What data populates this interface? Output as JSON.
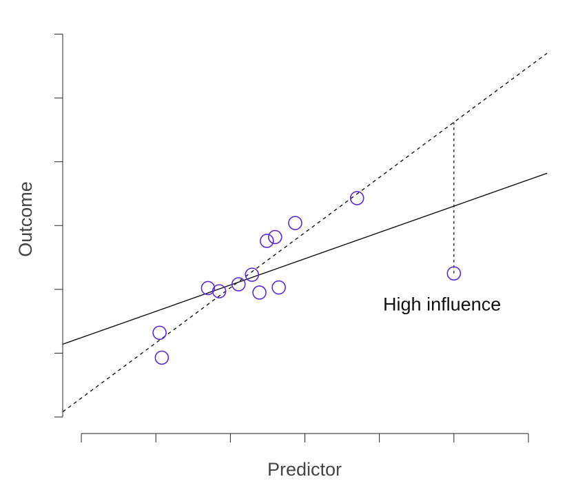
{
  "chart_data": {
    "type": "scatter",
    "xlabel": "Predictor",
    "ylabel": "Outcome",
    "xlim": [
      0,
      6.5
    ],
    "ylim": [
      0,
      6.2
    ],
    "x_ticks": [
      0.25,
      1.25,
      2.25,
      3.25,
      4.25,
      5.25,
      6.25
    ],
    "y_ticks": [
      0,
      1,
      2,
      3,
      4,
      5,
      6
    ],
    "tick_labels_shown": false,
    "grid": false,
    "point_color": "#5b28d6",
    "points": [
      {
        "x": 1.3,
        "y": 1.32
      },
      {
        "x": 1.33,
        "y": 0.93
      },
      {
        "x": 1.95,
        "y": 2.02
      },
      {
        "x": 2.1,
        "y": 1.97
      },
      {
        "x": 2.36,
        "y": 2.08
      },
      {
        "x": 2.54,
        "y": 2.23
      },
      {
        "x": 2.64,
        "y": 1.95
      },
      {
        "x": 2.74,
        "y": 2.76
      },
      {
        "x": 2.85,
        "y": 2.82
      },
      {
        "x": 2.9,
        "y": 2.03
      },
      {
        "x": 3.12,
        "y": 3.04
      },
      {
        "x": 3.95,
        "y": 3.43
      },
      {
        "x": 5.25,
        "y": 2.25
      }
    ],
    "lines": [
      {
        "style": "solid",
        "x": [
          0,
          6.5
        ],
        "y": [
          1.14,
          3.82
        ]
      },
      {
        "style": "dashed",
        "x": [
          0,
          6.5
        ],
        "y": [
          0.08,
          5.7
        ]
      }
    ],
    "residual_segment": {
      "x": 5.25,
      "y": [
        2.25,
        4.62
      ]
    },
    "annotation": {
      "text": "High influence",
      "x": 4.3,
      "y": 1.67
    }
  }
}
